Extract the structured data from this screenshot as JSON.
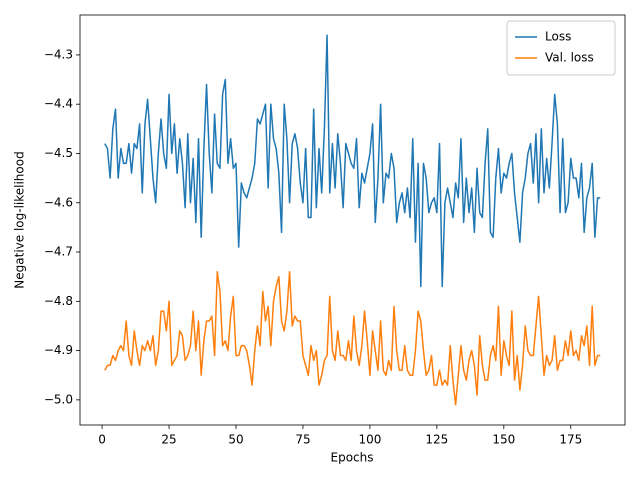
{
  "chart_data": {
    "type": "line",
    "xlabel": "Epochs",
    "ylabel": "Negative log-likelihood",
    "xlim": [
      -8.25,
      195.25
    ],
    "ylim": [
      -5.051,
      -4.219
    ],
    "xticks": [
      0,
      25,
      50,
      75,
      100,
      125,
      150,
      175
    ],
    "yticks": [
      {
        "value": -5.0,
        "label": "−5.0"
      },
      {
        "value": -4.9,
        "label": "−4.9"
      },
      {
        "value": -4.8,
        "label": "−4.8"
      },
      {
        "value": -4.7,
        "label": "−4.7"
      },
      {
        "value": -4.6,
        "label": "−4.6"
      },
      {
        "value": -4.5,
        "label": "−4.5"
      },
      {
        "value": -4.4,
        "label": "−4.4"
      },
      {
        "value": -4.3,
        "label": "−4.3"
      }
    ],
    "legend": "upper right",
    "x": [
      1,
      2,
      3,
      4,
      5,
      6,
      7,
      8,
      9,
      10,
      11,
      12,
      13,
      14,
      15,
      16,
      17,
      18,
      19,
      20,
      21,
      22,
      23,
      24,
      25,
      26,
      27,
      28,
      29,
      30,
      31,
      32,
      33,
      34,
      35,
      36,
      37,
      38,
      39,
      40,
      41,
      42,
      43,
      44,
      45,
      46,
      47,
      48,
      49,
      50,
      51,
      52,
      53,
      54,
      55,
      56,
      57,
      58,
      59,
      60,
      61,
      62,
      63,
      64,
      65,
      66,
      67,
      68,
      69,
      70,
      71,
      72,
      73,
      74,
      75,
      76,
      77,
      78,
      79,
      80,
      81,
      82,
      83,
      84,
      85,
      86,
      87,
      88,
      89,
      90,
      91,
      92,
      93,
      94,
      95,
      96,
      97,
      98,
      99,
      100,
      101,
      102,
      103,
      104,
      105,
      106,
      107,
      108,
      109,
      110,
      111,
      112,
      113,
      114,
      115,
      116,
      117,
      118,
      119,
      120,
      121,
      122,
      123,
      124,
      125,
      126,
      127,
      128,
      129,
      130,
      131,
      132,
      133,
      134,
      135,
      136,
      137,
      138,
      139,
      140,
      141,
      142,
      143,
      144,
      145,
      146,
      147,
      148,
      149,
      150,
      151,
      152,
      153,
      154,
      155,
      156,
      157,
      158,
      159,
      160,
      161,
      162,
      163,
      164,
      165,
      166,
      167,
      168,
      169,
      170,
      171,
      172,
      173,
      174,
      175,
      176,
      177,
      178,
      179,
      180,
      181,
      182,
      183,
      184,
      185,
      186
    ],
    "series": [
      {
        "name": "Loss",
        "color": "#1f77b4",
        "values": [
          -4.48,
          -4.49,
          -4.55,
          -4.45,
          -4.41,
          -4.55,
          -4.49,
          -4.52,
          -4.52,
          -4.48,
          -4.54,
          -4.48,
          -4.49,
          -4.44,
          -4.58,
          -4.44,
          -4.39,
          -4.47,
          -4.55,
          -4.6,
          -4.5,
          -4.43,
          -4.5,
          -4.53,
          -4.38,
          -4.5,
          -4.44,
          -4.54,
          -4.47,
          -4.52,
          -4.61,
          -4.46,
          -4.6,
          -4.51,
          -4.64,
          -4.47,
          -4.67,
          -4.49,
          -4.36,
          -4.5,
          -4.58,
          -4.42,
          -4.52,
          -4.53,
          -4.38,
          -4.35,
          -4.52,
          -4.47,
          -4.53,
          -4.52,
          -4.69,
          -4.56,
          -4.58,
          -4.59,
          -4.57,
          -4.55,
          -4.52,
          -4.43,
          -4.44,
          -4.42,
          -4.4,
          -4.57,
          -4.4,
          -4.47,
          -4.49,
          -4.54,
          -4.66,
          -4.4,
          -4.47,
          -4.6,
          -4.48,
          -4.46,
          -4.49,
          -4.56,
          -4.6,
          -4.49,
          -4.63,
          -4.63,
          -4.41,
          -4.61,
          -4.49,
          -4.58,
          -4.45,
          -4.26,
          -4.58,
          -4.48,
          -4.57,
          -4.46,
          -4.52,
          -4.61,
          -4.48,
          -4.5,
          -4.52,
          -4.53,
          -4.47,
          -4.61,
          -4.54,
          -4.56,
          -4.53,
          -4.5,
          -4.44,
          -4.64,
          -4.55,
          -4.4,
          -4.6,
          -4.54,
          -4.55,
          -4.5,
          -4.53,
          -4.64,
          -4.6,
          -4.58,
          -4.62,
          -4.57,
          -4.63,
          -4.47,
          -4.68,
          -4.52,
          -4.77,
          -4.52,
          -4.55,
          -4.62,
          -4.6,
          -4.59,
          -4.62,
          -4.48,
          -4.77,
          -4.6,
          -4.57,
          -4.6,
          -4.63,
          -4.56,
          -4.59,
          -4.47,
          -4.64,
          -4.55,
          -4.62,
          -4.57,
          -4.66,
          -4.53,
          -4.62,
          -4.63,
          -4.52,
          -4.45,
          -4.66,
          -4.67,
          -4.55,
          -4.49,
          -4.58,
          -4.54,
          -4.55,
          -4.52,
          -4.5,
          -4.58,
          -4.63,
          -4.68,
          -4.58,
          -4.55,
          -4.5,
          -4.48,
          -4.56,
          -4.46,
          -4.6,
          -4.45,
          -4.58,
          -4.51,
          -4.57,
          -4.48,
          -4.38,
          -4.44,
          -4.62,
          -4.47,
          -4.62,
          -4.6,
          -4.51,
          -4.55,
          -4.55,
          -4.59,
          -4.52,
          -4.66,
          -4.59,
          -4.57,
          -4.52,
          -4.67,
          -4.59,
          -4.59
        ]
      },
      {
        "name": "Val. loss",
        "color": "#ff7f0e",
        "values": [
          -4.94,
          -4.93,
          -4.93,
          -4.91,
          -4.92,
          -4.9,
          -4.89,
          -4.9,
          -4.84,
          -4.91,
          -4.93,
          -4.86,
          -4.9,
          -4.93,
          -4.89,
          -4.9,
          -4.88,
          -4.9,
          -4.87,
          -4.93,
          -4.9,
          -4.82,
          -4.82,
          -4.86,
          -4.8,
          -4.93,
          -4.92,
          -4.91,
          -4.86,
          -4.87,
          -4.92,
          -4.91,
          -4.89,
          -4.82,
          -4.9,
          -4.84,
          -4.95,
          -4.88,
          -4.84,
          -4.84,
          -4.83,
          -4.91,
          -4.74,
          -4.78,
          -4.89,
          -4.88,
          -4.9,
          -4.83,
          -4.79,
          -4.91,
          -4.91,
          -4.89,
          -4.89,
          -4.9,
          -4.93,
          -4.97,
          -4.9,
          -4.85,
          -4.89,
          -4.78,
          -4.84,
          -4.81,
          -4.89,
          -4.8,
          -4.77,
          -4.75,
          -4.84,
          -4.86,
          -4.82,
          -4.74,
          -4.85,
          -4.83,
          -4.84,
          -4.84,
          -4.91,
          -4.93,
          -4.95,
          -4.89,
          -4.92,
          -4.9,
          -4.97,
          -4.95,
          -4.92,
          -4.91,
          -4.79,
          -4.9,
          -4.92,
          -4.86,
          -4.91,
          -4.91,
          -4.92,
          -4.88,
          -4.92,
          -4.83,
          -4.9,
          -4.93,
          -4.89,
          -4.82,
          -4.88,
          -4.95,
          -4.86,
          -4.9,
          -4.94,
          -4.84,
          -4.94,
          -4.95,
          -4.92,
          -4.94,
          -4.81,
          -4.9,
          -4.94,
          -4.94,
          -4.89,
          -4.94,
          -4.95,
          -4.95,
          -4.9,
          -4.82,
          -4.84,
          -4.9,
          -4.95,
          -4.94,
          -4.91,
          -4.97,
          -4.97,
          -4.94,
          -4.97,
          -4.96,
          -4.97,
          -4.89,
          -4.96,
          -5.01,
          -4.95,
          -4.89,
          -4.94,
          -4.96,
          -4.92,
          -4.9,
          -4.93,
          -4.99,
          -4.87,
          -4.93,
          -4.96,
          -4.96,
          -4.91,
          -4.89,
          -4.92,
          -4.81,
          -4.95,
          -4.88,
          -4.91,
          -4.93,
          -4.82,
          -4.96,
          -4.91,
          -4.98,
          -4.93,
          -4.85,
          -4.9,
          -4.91,
          -4.91,
          -4.85,
          -4.79,
          -4.87,
          -4.95,
          -4.91,
          -4.93,
          -4.92,
          -4.87,
          -4.94,
          -4.92,
          -4.92,
          -4.88,
          -4.91,
          -4.86,
          -4.91,
          -4.9,
          -4.92,
          -4.87,
          -4.89,
          -4.85,
          -4.93,
          -4.81,
          -4.93,
          -4.91,
          -4.91
        ]
      }
    ]
  }
}
